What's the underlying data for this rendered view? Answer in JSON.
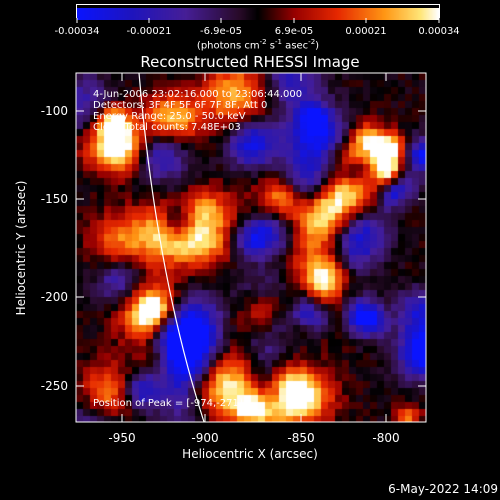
{
  "colorbar": {
    "ticks": [
      "-0.00034",
      "-0.00021",
      "-6.9e-05",
      "6.9e-05",
      "0.00021",
      "0.00034"
    ],
    "units_main": "(photons cm",
    "units_sup1": "-2",
    "units_mid": " s",
    "units_sup2": "-1",
    "units_mid2": " asec",
    "units_sup3": "-2",
    "units_end": ")"
  },
  "title": "Reconstructed RHESSI Image",
  "info": {
    "time_range": "4-Jun-2006 23:02:16.000 to 23:06:44.000",
    "detectors": "Detectors: 3F 4F 5F 6F 7F 8F, Att 0",
    "energy": "Energy Range: 25.0 - 50.0 keV",
    "clean": "Clean     Total counts: 7.48E+03",
    "peak": "Position of Peak = [-974,-271]"
  },
  "axes": {
    "xlabel": "Heliocentric X (arcsec)",
    "ylabel": "Heliocentric Y (arcsec)",
    "xticks": [
      "-950",
      "-900",
      "-850",
      "-800"
    ],
    "yticks": [
      "-100",
      "-150",
      "-200",
      "-250"
    ]
  },
  "datestamp": "6-May-2022 14:09",
  "colors": {
    "background": "#000000",
    "foreground": "#ffffff"
  }
}
